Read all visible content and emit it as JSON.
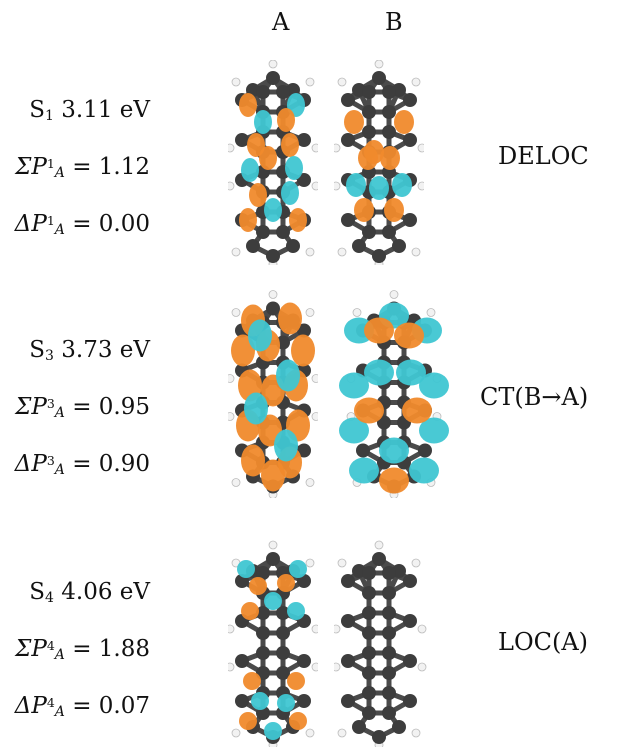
{
  "columns": {
    "a": "A",
    "b": "B"
  },
  "rows": [
    {
      "state": "S",
      "state_index": "1",
      "energy": "3.11 eV",
      "sum_expr": "ΣP",
      "sum_sup": "1",
      "sum_sub": "A",
      "sum_value": "= 1.12",
      "delta_expr": "ΔP",
      "delta_sup": "1",
      "delta_sub": "A",
      "delta_value": "= 0.00",
      "label": "DELOC"
    },
    {
      "state": "S",
      "state_index": "3",
      "energy": "3.73 eV",
      "sum_expr": "ΣP",
      "sum_sup": "3",
      "sum_sub": "A",
      "sum_value": "= 0.95",
      "delta_expr": "ΔP",
      "delta_sup": "3",
      "delta_sub": "A",
      "delta_value": "= 0.90",
      "label": "CT(B→A)"
    },
    {
      "state": "S",
      "state_index": "4",
      "energy": "4.06 eV",
      "sum_expr": "ΣP",
      "sum_sup": "4",
      "sum_sub": "A",
      "sum_value": "= 1.88",
      "delta_expr": "ΔP",
      "delta_sup": "4",
      "delta_sub": "A",
      "delta_value": "= 0.07",
      "label": "LOC(A)"
    }
  ],
  "colors": {
    "carbon": "#3d3d3d",
    "hydrogen": "#f2f2f2",
    "positive_lobe": "#f08a2c",
    "negative_lobe": "#3fc6d2"
  }
}
